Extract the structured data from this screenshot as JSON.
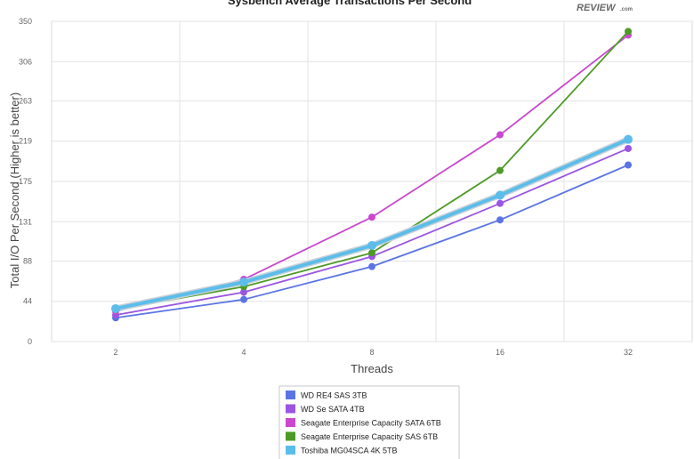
{
  "brand": {
    "logo_text": "REVIEW",
    "logo_suffix": ".com"
  },
  "chart_data": {
    "type": "line",
    "title": "Sysbench Average Transactions Per Second",
    "xlabel": "Threads",
    "ylabel": "Total I/O Per Second (Higher is better)",
    "categories": [
      "2",
      "4",
      "8",
      "16",
      "32"
    ],
    "yticks": [
      "0",
      "44",
      "88",
      "131",
      "175",
      "219",
      "263",
      "306",
      "350"
    ],
    "ylim": [
      0,
      350
    ],
    "grid": true,
    "legend_position": "bottom",
    "series": [
      {
        "name": "WD RE4 SAS 3TB",
        "color": "#5b74e4",
        "values": [
          26,
          46,
          82,
          133,
          193
        ]
      },
      {
        "name": "WD Se SATA 4TB",
        "color": "#9b55e2",
        "values": [
          29,
          54,
          93,
          151,
          211
        ]
      },
      {
        "name": "Seagate Enterprise Capacity SATA 6TB",
        "color": "#c948cf",
        "values": [
          33,
          68,
          136,
          226,
          335
        ]
      },
      {
        "name": "Seagate Enterprise Capacity SAS 6TB",
        "color": "#4e9a26",
        "values": [
          35,
          60,
          97,
          187,
          339
        ]
      },
      {
        "name": "Toshiba MG04SCA 4K 5TB",
        "color": "#5bbdea",
        "values": [
          36,
          65,
          105,
          160,
          221
        ]
      }
    ]
  }
}
